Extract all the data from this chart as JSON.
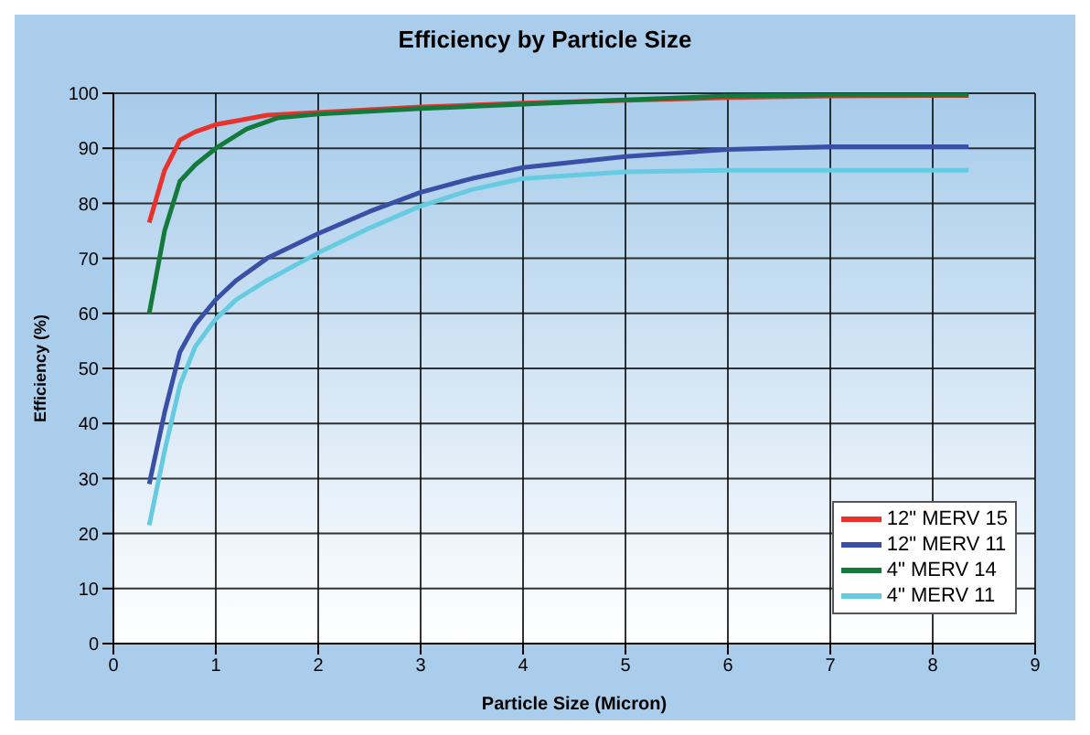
{
  "chart_data": {
    "type": "line",
    "title": "Efficiency by Particle Size",
    "xlabel": "Particle Size (Micron)",
    "ylabel": "Efficiency (%)",
    "xlim": [
      0,
      9
    ],
    "xticks": [
      0,
      1,
      2,
      3,
      4,
      5,
      6,
      7,
      8,
      9
    ],
    "ylim": [
      0,
      100
    ],
    "yticks": [
      0,
      10,
      20,
      30,
      40,
      50,
      60,
      70,
      80,
      90,
      100
    ],
    "grid": true,
    "legend": "bottom right",
    "marker": "none",
    "line_style": "solid",
    "series": [
      {
        "name": "12\" MERV 15",
        "color": "#e8322b",
        "x": [
          0.35,
          0.5,
          0.65,
          0.8,
          1,
          1.5,
          2,
          3,
          4,
          5,
          6,
          7,
          8.35
        ],
        "values": [
          76.5,
          86,
          91.5,
          93,
          94.3,
          96,
          96.5,
          97.5,
          98.2,
          98.7,
          99.2,
          99.5,
          99.6
        ]
      },
      {
        "name": "12\" MERV 11",
        "color": "#3a4fa6",
        "x": [
          0.35,
          0.5,
          0.65,
          0.8,
          1,
          1.2,
          1.5,
          2,
          2.5,
          3,
          3.5,
          4,
          5,
          6,
          7,
          8.35
        ],
        "values": [
          29,
          42,
          53,
          58,
          62.5,
          66,
          70,
          74.5,
          78.5,
          82,
          84.5,
          86.5,
          88.5,
          89.8,
          90.3,
          90.3
        ]
      },
      {
        "name": "4\" MERV 14",
        "color": "#137a3c",
        "x": [
          0.35,
          0.5,
          0.65,
          0.8,
          1,
          1.3,
          1.6,
          2,
          3,
          4,
          5,
          6,
          7,
          8.35
        ],
        "values": [
          60,
          75,
          84,
          87,
          90,
          93.5,
          95.5,
          96.2,
          97.2,
          98,
          98.8,
          99.5,
          99.7,
          99.7
        ]
      },
      {
        "name": "4\" MERV 11",
        "color": "#66cbe0",
        "x": [
          0.35,
          0.5,
          0.65,
          0.8,
          1,
          1.2,
          1.5,
          2,
          2.5,
          3,
          3.5,
          4,
          5,
          6,
          8.35
        ],
        "values": [
          21.5,
          35,
          47,
          54,
          59,
          62.5,
          66,
          71,
          75.5,
          79.5,
          82.5,
          84.5,
          85.7,
          86,
          86
        ]
      }
    ]
  }
}
